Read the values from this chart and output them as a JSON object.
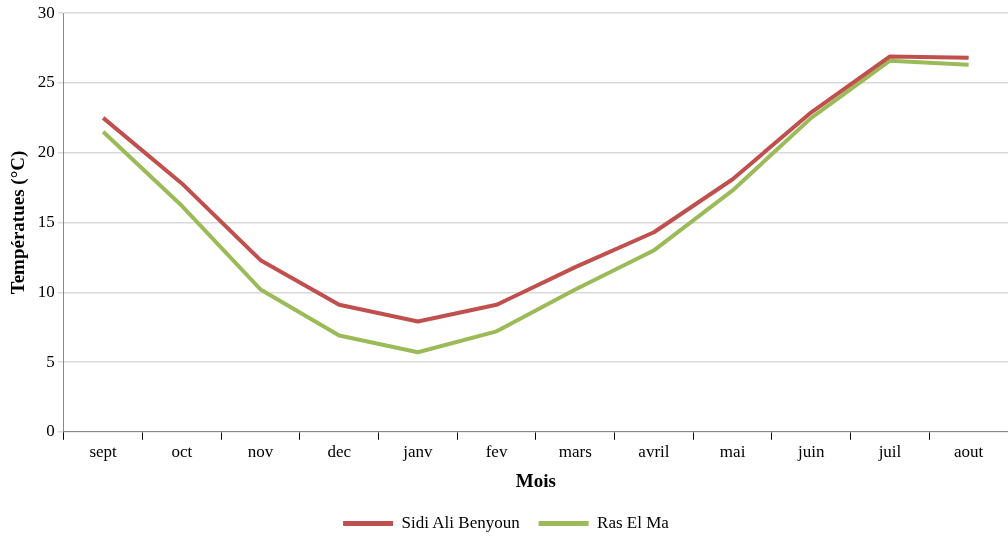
{
  "chart_data": {
    "type": "line",
    "xlabel": "Mois",
    "ylabel": "Températues (°C)",
    "categories": [
      "sept",
      "oct",
      "nov",
      "dec",
      "janv",
      "fev",
      "mars",
      "avril",
      "mai",
      "juin",
      "juil",
      "aout"
    ],
    "series": [
      {
        "name": "Sidi Ali Benyoun",
        "color": "#c0504d",
        "values": [
          22.5,
          17.8,
          12.3,
          9.1,
          7.9,
          9.1,
          11.8,
          14.3,
          18.1,
          22.9,
          26.9,
          26.8
        ]
      },
      {
        "name": "Ras El Ma",
        "color": "#9bbb59",
        "values": [
          21.5,
          16.2,
          10.2,
          6.9,
          5.7,
          7.2,
          10.2,
          13.0,
          17.3,
          22.5,
          26.6,
          26.3
        ]
      }
    ],
    "ylim": [
      0,
      30
    ],
    "yticks": [
      0,
      5,
      10,
      15,
      20,
      25,
      30
    ],
    "grid": "y",
    "legend": "bottom",
    "marker": "none",
    "line_style": "solid"
  }
}
